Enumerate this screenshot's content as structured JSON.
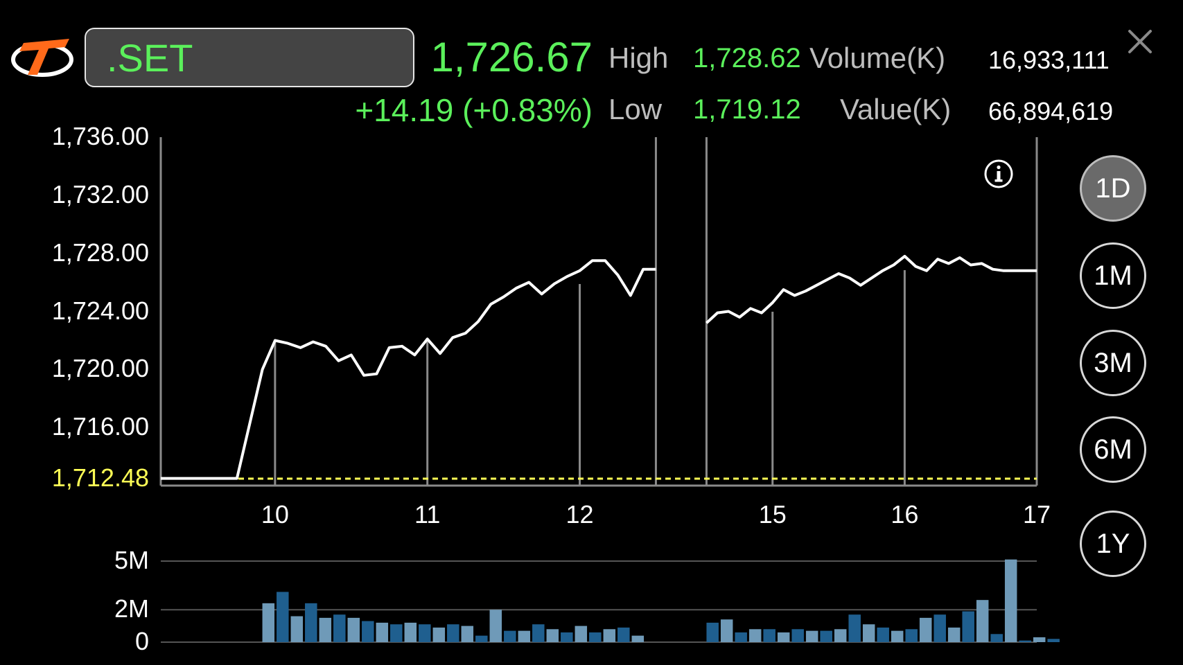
{
  "header": {
    "symbol": ".SET",
    "last_price": "1,726.67",
    "change": "+14.19 (+0.83%)",
    "high_label": "High",
    "high_value": "1,728.62",
    "low_label": "Low",
    "low_value": "1,719.12",
    "volume_label": "Volume(K)",
    "volume_value": "16,933,111",
    "value_label": "Value(K)",
    "value_value": "66,894,619"
  },
  "periods": [
    "1D",
    "1M",
    "3M",
    "6M",
    "1Y"
  ],
  "active_period": "1D",
  "colors": {
    "up": "#5bf05b",
    "prev_close": "#ffff55",
    "line": "#ffffff",
    "bar_dark": "#1f5f8f",
    "bar_light": "#6f9ab8"
  },
  "chart_data": {
    "type": "line",
    "y_ticks": [
      "1,736.00",
      "1,732.00",
      "1,728.00",
      "1,724.00",
      "1,720.00",
      "1,716.00"
    ],
    "ylim": [
      1712.48,
      1736.0
    ],
    "prev_close": 1712.48,
    "prev_close_label": "1,712.48",
    "x_ticks": [
      {
        "label": "10",
        "time": "10:00"
      },
      {
        "label": "11",
        "time": "11:00"
      },
      {
        "label": "12",
        "time": "12:00"
      },
      {
        "label": "15",
        "time": "15:00"
      },
      {
        "label": "16",
        "time": "16:00"
      },
      {
        "label": "17",
        "time": "17:00"
      }
    ],
    "session_markers": [
      "12:30",
      "14:30"
    ],
    "morning_session": {
      "times": [
        "09:15",
        "09:30",
        "09:45",
        "09:55",
        "10:00",
        "10:05",
        "10:10",
        "10:15",
        "10:20",
        "10:25",
        "10:30",
        "10:35",
        "10:40",
        "10:45",
        "10:50",
        "10:55",
        "11:00",
        "11:05",
        "11:10",
        "11:15",
        "11:20",
        "11:25",
        "11:30",
        "11:35",
        "11:40",
        "11:45",
        "11:50",
        "11:55",
        "12:00",
        "12:05",
        "12:10",
        "12:15",
        "12:20",
        "12:25",
        "12:30"
      ],
      "values": [
        1712.5,
        1712.5,
        1712.5,
        1720.0,
        1722.0,
        1721.8,
        1721.5,
        1721.9,
        1721.6,
        1720.6,
        1721.0,
        1719.6,
        1719.7,
        1721.5,
        1721.6,
        1721.0,
        1722.1,
        1721.1,
        1722.2,
        1722.5,
        1723.3,
        1724.5,
        1725.0,
        1725.6,
        1726.0,
        1725.2,
        1725.9,
        1726.4,
        1726.8,
        1727.5,
        1727.5,
        1726.5,
        1725.1,
        1726.9,
        1726.9
      ]
    },
    "afternoon_session": {
      "times": [
        "14:30",
        "14:35",
        "14:40",
        "14:45",
        "14:50",
        "14:55",
        "15:00",
        "15:05",
        "15:10",
        "15:15",
        "15:20",
        "15:25",
        "15:30",
        "15:35",
        "15:40",
        "15:45",
        "15:50",
        "15:55",
        "16:00",
        "16:05",
        "16:10",
        "16:15",
        "16:20",
        "16:25",
        "16:30",
        "16:35",
        "16:40",
        "16:45",
        "17:00"
      ],
      "values": [
        1723.2,
        1723.9,
        1724.0,
        1723.6,
        1724.2,
        1723.9,
        1724.6,
        1725.5,
        1725.1,
        1725.4,
        1725.8,
        1726.2,
        1726.6,
        1726.3,
        1725.8,
        1726.3,
        1726.8,
        1727.2,
        1727.8,
        1727.1,
        1726.8,
        1727.6,
        1727.3,
        1727.7,
        1727.2,
        1727.3,
        1726.9,
        1726.8,
        1726.8
      ]
    },
    "volume": {
      "y_ticks": [
        "5M",
        "2M",
        "0"
      ],
      "ylim": [
        0,
        5
      ],
      "bars": [
        2.4,
        3.1,
        1.6,
        2.4,
        1.5,
        1.7,
        1.5,
        1.3,
        1.2,
        1.1,
        1.2,
        1.1,
        0.9,
        1.1,
        1.0,
        0.4,
        2.0,
        0.7,
        0.7,
        1.1,
        0.8,
        0.6,
        1.0,
        0.6,
        0.8,
        0.9,
        0.4,
        1.2,
        1.4,
        0.6,
        0.8,
        0.8,
        0.6,
        0.8,
        0.7,
        0.7,
        0.8,
        1.7,
        1.1,
        0.9,
        0.7,
        0.8,
        1.5,
        1.7,
        0.9,
        1.9,
        2.6,
        0.5,
        5.1,
        0.1,
        0.3,
        0.2
      ]
    }
  }
}
